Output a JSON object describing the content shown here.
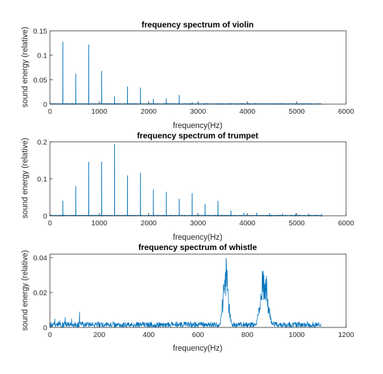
{
  "colors": {
    "series": "#0072bd",
    "axis": "#262626",
    "background": "#ffffff"
  },
  "chart_data": [
    {
      "type": "line",
      "title": "frequency spectrum of violin",
      "xlabel": "frequency(Hz)",
      "ylabel": "sound energy (relative)",
      "xlim": [
        0,
        6000
      ],
      "ylim": [
        0,
        0.15
      ],
      "xticks": [
        "0",
        "1000",
        "2000",
        "3000",
        "4000",
        "5000",
        "6000"
      ],
      "yticks": [
        "0",
        "0.05",
        "0.1",
        "0.15"
      ],
      "series": [
        {
          "peaks": [
            [
              262,
              0.128
            ],
            [
              524,
              0.062
            ],
            [
              786,
              0.122
            ],
            [
              1048,
              0.068
            ],
            [
              1310,
              0.016
            ],
            [
              1572,
              0.036
            ],
            [
              1834,
              0.034
            ],
            [
              2096,
              0.011
            ],
            [
              2358,
              0.012
            ],
            [
              2620,
              0.019
            ],
            [
              2882,
              0.004
            ],
            [
              3144,
              0.002
            ],
            [
              3406,
              0.001
            ],
            [
              3668,
              0.002
            ],
            [
              4192,
              0.001
            ],
            [
              4716,
              0.001
            ]
          ],
          "noise_end": 5500
        }
      ]
    },
    {
      "type": "line",
      "title": "frequency spectrum of trumpet",
      "xlabel": "frequency(Hz)",
      "ylabel": "sound energy (relative)",
      "xlim": [
        0,
        6000
      ],
      "ylim": [
        0,
        0.2
      ],
      "xticks": [
        "0",
        "1000",
        "2000",
        "3000",
        "4000",
        "5000",
        "6000"
      ],
      "yticks": [
        "0",
        "0.1",
        "0.2"
      ],
      "series": [
        {
          "peaks": [
            [
              262,
              0.041
            ],
            [
              524,
              0.08
            ],
            [
              786,
              0.146
            ],
            [
              1048,
              0.146
            ],
            [
              1310,
              0.194
            ],
            [
              1572,
              0.109
            ],
            [
              1834,
              0.116
            ],
            [
              2096,
              0.071
            ],
            [
              2358,
              0.065
            ],
            [
              2620,
              0.046
            ],
            [
              2882,
              0.061
            ],
            [
              3144,
              0.032
            ],
            [
              3406,
              0.04
            ],
            [
              3668,
              0.014
            ],
            [
              3930,
              0.008
            ],
            [
              4192,
              0.008
            ],
            [
              4454,
              0.007
            ],
            [
              4716,
              0.006
            ],
            [
              4978,
              0.006
            ],
            [
              5240,
              0.006
            ],
            [
              5502,
              0.005
            ]
          ],
          "noise_end": 5510
        }
      ]
    },
    {
      "type": "line",
      "title": "frequency spectrum of whistle",
      "xlabel": "frequency(Hz)",
      "ylabel": "sound energy (relative)",
      "xlim": [
        0,
        1200
      ],
      "ylim": [
        0,
        0.042
      ],
      "xticks": [
        "0",
        "200",
        "400",
        "600",
        "800",
        "1000",
        "1200"
      ],
      "yticks": [
        "0",
        "0.02",
        "0.04"
      ],
      "series": [
        {
          "bands": [
            {
              "center": 712,
              "width": 22,
              "peak": 0.041
            },
            {
              "center": 868,
              "width": 30,
              "peak": 0.038
            }
          ],
          "spikes": [
            [
              20,
              0.005
            ],
            [
              40,
              0.004
            ],
            [
              62,
              0.006
            ],
            [
              88,
              0.005
            ],
            [
              120,
              0.009
            ]
          ],
          "baseline": 0.002,
          "x_end": 1100
        }
      ]
    }
  ]
}
